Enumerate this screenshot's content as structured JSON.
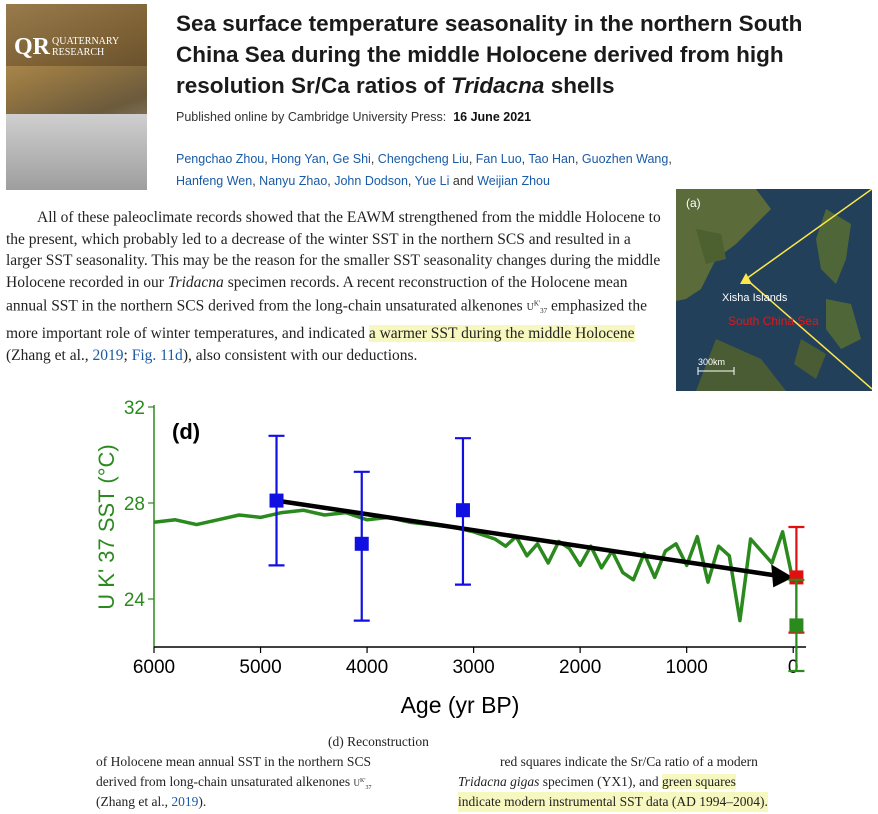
{
  "cover": {
    "logo": "QR",
    "journal": "QUATERNARY RESEARCH"
  },
  "title": "Sea surface temperature seasonality in the northern South China Sea during the middle Holocene derived from high resolution Sr/Ca ratios of",
  "title_italic": "Tridacna",
  "title_end": "shells",
  "publication": {
    "prefix": "Published online by Cambridge University Press:",
    "date": "16 June 2021"
  },
  "authors": [
    "Pengchao Zhou",
    "Hong Yan",
    "Ge Shi",
    "Chengcheng Liu",
    "Fan Luo",
    "Tao Han",
    "Guozhen Wang",
    "Hanfeng Wen",
    "Nanyu Zhao",
    "John Dodson",
    "Yue Li",
    "Weijian Zhou"
  ],
  "body": {
    "p1": "All of these paleoclimate records showed that the EAWM strengthened from the middle Holocene to the present, which probably led to a decrease of the winter SST in the northern SCS and resulted in a larger SST seasonality. This may be the reason for the smaller SST seasonality changes during the middle Holocene recorded in our",
    "p1_italic": "Tridacna",
    "p2": "specimen records. A recent reconstruction of the Holocene mean annual SST in the northern SCS derived from the long-chain unsaturated alkenones",
    "proxy": "U",
    "p3": "emphasized the more important role of winter temperatures, and indicated",
    "highlight": "a warmer SST during the middle Holocene",
    "p4": "(Zhang et al.,",
    "cite_year": "2019",
    "cite_fig": "Fig. 11d",
    "p5": "), also consistent with our deductions."
  },
  "map": {
    "panel": "(a)",
    "place": "Xisha Islands",
    "sea": "South China Sea",
    "scale": "300km"
  },
  "chart_data": {
    "type": "line",
    "panel_label": "(d)",
    "xlabel": "Age (yr BP)",
    "ylabel": "U K' 37 SST (°C)",
    "xlim": [
      6000,
      -120
    ],
    "ylim": [
      22,
      32
    ],
    "xticks": [
      6000,
      5000,
      4000,
      3000,
      2000,
      1000,
      0
    ],
    "yticks": [
      24,
      28,
      32
    ],
    "series": [
      {
        "color": "#2b8a1e",
        "x": [
          6000,
          5800,
          5600,
          5400,
          5200,
          5000,
          4800,
          4600,
          4400,
          4200,
          4000,
          3800,
          3600,
          3400,
          3200,
          3000,
          2800,
          2700,
          2600,
          2500,
          2400,
          2300,
          2200,
          2100,
          2000,
          1900,
          1800,
          1700,
          1600,
          1500,
          1400,
          1300,
          1200,
          1100,
          1000,
          900,
          800,
          700,
          600,
          500,
          400,
          300,
          200,
          100,
          0
        ],
        "values": [
          27.2,
          27.3,
          27.1,
          27.3,
          27.5,
          27.4,
          27.6,
          27.7,
          27.5,
          27.6,
          27.3,
          27.4,
          27.2,
          27.1,
          27.0,
          26.8,
          26.5,
          26.2,
          26.6,
          25.8,
          26.3,
          25.5,
          26.4,
          26.1,
          25.4,
          26.2,
          25.3,
          26.0,
          25.1,
          24.8,
          25.9,
          24.9,
          26.0,
          26.3,
          25.4,
          26.6,
          24.7,
          26.2,
          25.8,
          23.1,
          26.5,
          26.0,
          25.5,
          26.8,
          24.7
        ]
      },
      {
        "name": "",
        "color": "#1010e0",
        "marker": "square",
        "x": [
          4850,
          4050,
          3100
        ],
        "values": [
          28.1,
          26.3,
          27.7
        ],
        "err_low": [
          25.4,
          23.1,
          24.6
        ],
        "err_high": [
          30.8,
          29.3,
          30.7
        ]
      },
      {
        "color": "#e01010",
        "marker": "square",
        "x": [
          -30
        ],
        "values": [
          24.9
        ],
        "err_low": [
          22.6
        ],
        "err_high": [
          27.0
        ]
      },
      {
        "color": "#2b8a1e",
        "marker": "square",
        "x": [
          -30
        ],
        "values": [
          22.9
        ],
        "err_low": [
          21.0
        ],
        "err_high": [
          24.8
        ]
      }
    ],
    "trend_arrow": {
      "from": [
        4850,
        28.1
      ],
      "to": [
        0,
        24.9
      ]
    }
  },
  "caption": {
    "c1": "(d) Reconstruction",
    "c2": "of Holocene mean annual SST in the northern SCS",
    "c3": "derived from long-chain unsaturated alkenones",
    "c4": "(Zhang et al.,",
    "c4_year": "2019",
    "c4_end": ").",
    "r1": "red squares indicate the Sr/Ca ratio of a modern",
    "r2_italic": "Tridacna gigas",
    "r2": "specimen (YX1), and",
    "r2_hl": "green squares",
    "r3_hl": "indicate modern instrumental SST data (AD 1994–2004)."
  }
}
